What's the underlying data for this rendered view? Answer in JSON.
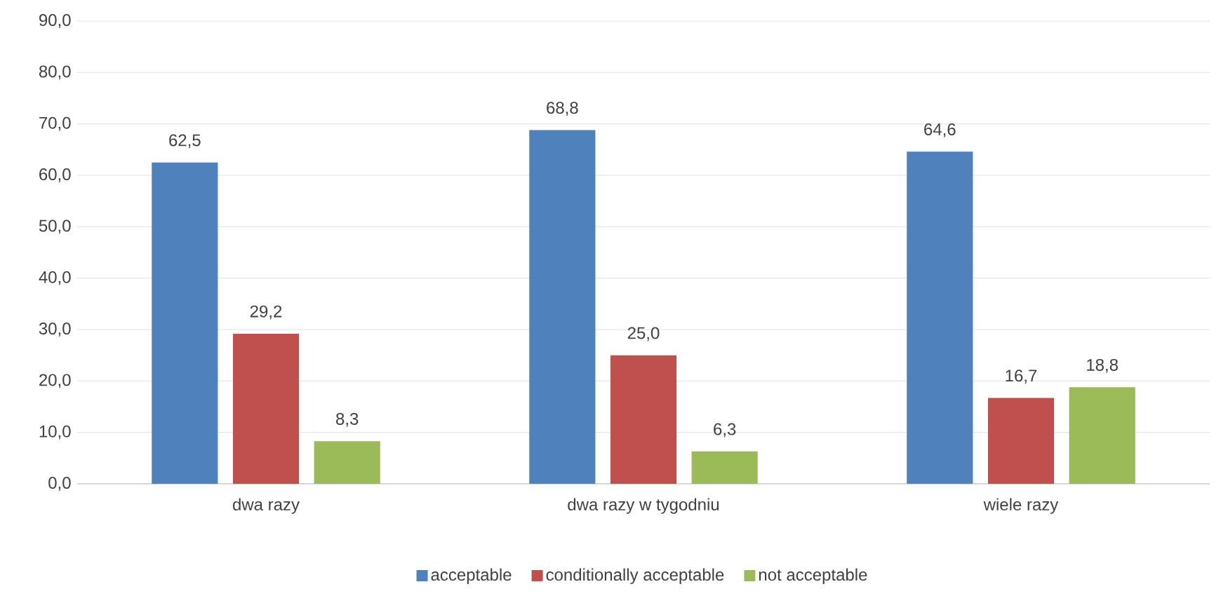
{
  "chart_data": {
    "type": "bar",
    "categories": [
      "dwa razy",
      "dwa razy w tygodniu",
      "wiele razy"
    ],
    "series": [
      {
        "name": "acceptable",
        "color": "#4f81bd",
        "values": [
          62.5,
          68.8,
          64.6
        ],
        "value_labels": [
          "62,5",
          "68,8",
          "64,6"
        ]
      },
      {
        "name": "conditionally acceptable",
        "color": "#c0504d",
        "values": [
          29.2,
          25.0,
          16.7
        ],
        "value_labels": [
          "29,2",
          "25,0",
          "16,7"
        ]
      },
      {
        "name": "not acceptable",
        "color": "#9bbb59",
        "values": [
          8.3,
          6.3,
          18.8
        ],
        "value_labels": [
          "8,3",
          "6,3",
          "18,8"
        ]
      }
    ],
    "ylim": [
      0,
      90
    ],
    "yticks": [
      {
        "value": 0,
        "label": "0,0"
      },
      {
        "value": 10,
        "label": "10,0"
      },
      {
        "value": 20,
        "label": "20,0"
      },
      {
        "value": 30,
        "label": "30,0"
      },
      {
        "value": 40,
        "label": "40,0"
      },
      {
        "value": 50,
        "label": "50,0"
      },
      {
        "value": 60,
        "label": "60,0"
      },
      {
        "value": 70,
        "label": "70,0"
      },
      {
        "value": 80,
        "label": "80,0"
      },
      {
        "value": 90,
        "label": "90,0"
      }
    ],
    "grid": "y",
    "legend": "bottom"
  }
}
